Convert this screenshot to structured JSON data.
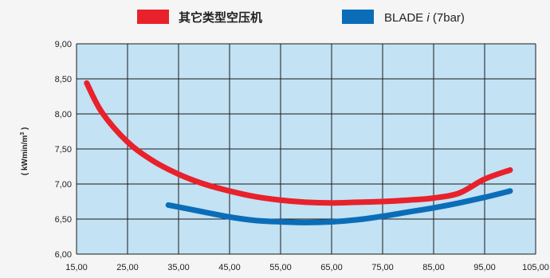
{
  "chart_data": {
    "type": "line",
    "ylabel_main": "( kWmin/m",
    "ylabel_sup": "3",
    "ylabel_end": " )",
    "xlim": [
      15,
      105
    ],
    "ylim": [
      6,
      9
    ],
    "x_ticks": [
      "15,00",
      "25,00",
      "35,00",
      "45,00",
      "55,00",
      "65,00",
      "75,00",
      "85,00",
      "95,00",
      "105,00"
    ],
    "y_ticks": [
      "6,00",
      "6,50",
      "7,00",
      "7,50",
      "8,00",
      "8,50",
      "9,00"
    ],
    "grid": true,
    "legend_position": "top",
    "series": [
      {
        "name": "其它类型空压机",
        "color": "#e8212b",
        "x": [
          17,
          20,
          25,
          30,
          35,
          40,
          45,
          50,
          55,
          60,
          65,
          70,
          75,
          80,
          85,
          90,
          95,
          100
        ],
        "y": [
          8.44,
          8.02,
          7.6,
          7.33,
          7.14,
          7.0,
          6.9,
          6.82,
          6.77,
          6.74,
          6.73,
          6.74,
          6.75,
          6.77,
          6.8,
          6.87,
          7.07,
          7.2
        ]
      },
      {
        "name": "BLADE",
        "name_suffix": " (7bar)",
        "name_italic": "i",
        "color": "#0b6db8",
        "x": [
          33,
          40,
          45,
          50,
          55,
          60,
          65,
          70,
          75,
          80,
          85,
          90,
          95,
          100
        ],
        "y": [
          6.7,
          6.6,
          6.53,
          6.48,
          6.46,
          6.45,
          6.46,
          6.49,
          6.54,
          6.6,
          6.66,
          6.73,
          6.81,
          6.9
        ]
      }
    ]
  },
  "colors": {
    "plot_bg": "#c3e2f4",
    "grid": "#1a1a1a",
    "page_bg": "#f5f5f5"
  }
}
